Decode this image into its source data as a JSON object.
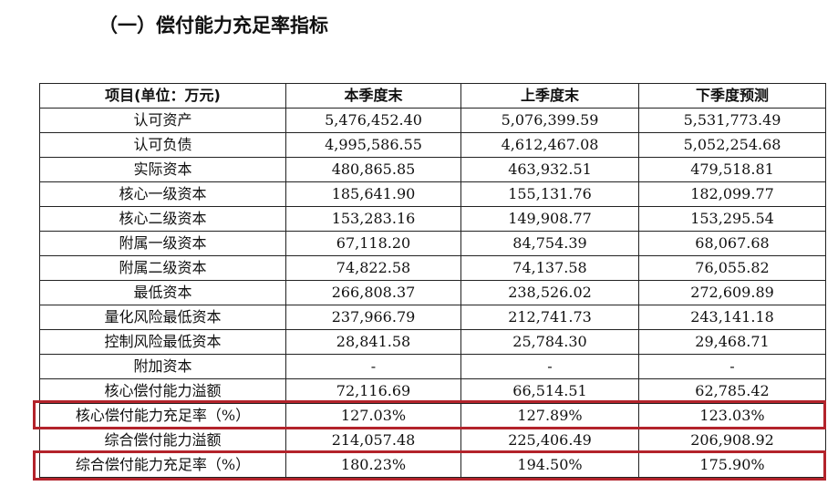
{
  "title": "（一）偿付能力充足率指标",
  "table": {
    "headers": [
      "项目(单位：万元)",
      "本季度末",
      "上季度末",
      "下季度预测"
    ],
    "rows": [
      [
        "认可资产",
        "5,476,452.40",
        "5,076,399.59",
        "5,531,773.49"
      ],
      [
        "认可负债",
        "4,995,586.55",
        "4,612,467.08",
        "5,052,254.68"
      ],
      [
        "实际资本",
        "480,865.85",
        "463,932.51",
        "479,518.81"
      ],
      [
        "核心一级资本",
        "185,641.90",
        "155,131.76",
        "182,099.77"
      ],
      [
        "核心二级资本",
        "153,283.16",
        "149,908.77",
        "153,295.54"
      ],
      [
        "附属一级资本",
        "67,118.20",
        "84,754.39",
        "68,067.68"
      ],
      [
        "附属二级资本",
        "74,822.58",
        "74,137.58",
        "76,055.82"
      ],
      [
        "最低资本",
        "266,808.37",
        "238,526.02",
        "272,609.89"
      ],
      [
        "量化风险最低资本",
        "237,966.79",
        "212,741.73",
        "243,141.18"
      ],
      [
        "控制风险最低资本",
        "28,841.58",
        "25,784.30",
        "29,468.71"
      ],
      [
        "附加资本",
        "-",
        "-",
        "-"
      ],
      [
        "核心偿付能力溢额",
        "72,116.69",
        "66,514.51",
        "62,785.42"
      ],
      [
        "核心偿付能力充足率（%）",
        "127.03%",
        "127.89%",
        "123.03%"
      ],
      [
        "综合偿付能力溢额",
        "214,057.48",
        "225,406.49",
        "206,908.92"
      ],
      [
        "综合偿付能力充足率（%）",
        "180.23%",
        "194.50%",
        "175.90%"
      ]
    ],
    "highlighted_rows": [
      12,
      14
    ],
    "highlight_color": "#b3232b"
  }
}
